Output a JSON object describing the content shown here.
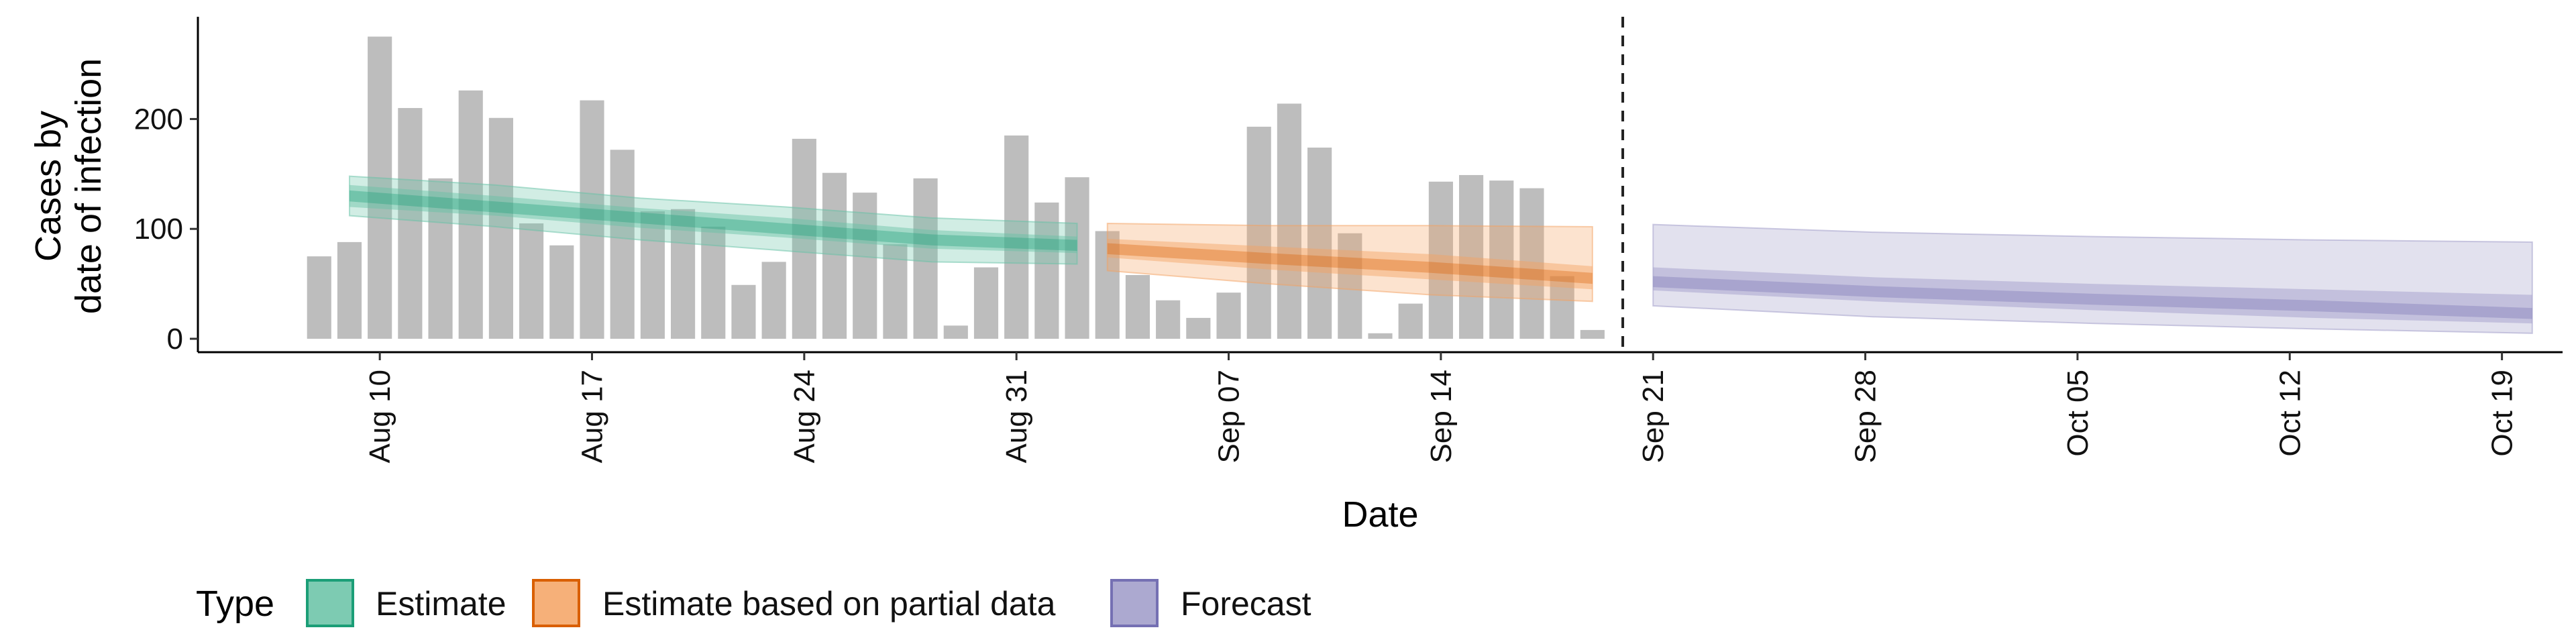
{
  "chart_data": {
    "type": "bar",
    "xlabel": "Date",
    "ylabel_lines": [
      "Cases by",
      "date of infection"
    ],
    "ylim": [
      0,
      290
    ],
    "yticks": [
      0,
      100,
      200
    ],
    "x_axis_start": "2020-08-04",
    "x_axis_end": "2020-10-21",
    "x_ticks": [
      {
        "date": "2020-08-10",
        "label": "Aug 10"
      },
      {
        "date": "2020-08-17",
        "label": "Aug 17"
      },
      {
        "date": "2020-08-24",
        "label": "Aug 24"
      },
      {
        "date": "2020-08-31",
        "label": "Aug 31"
      },
      {
        "date": "2020-09-07",
        "label": "Sep 07"
      },
      {
        "date": "2020-09-14",
        "label": "Sep 14"
      },
      {
        "date": "2020-09-21",
        "label": "Sep 21"
      },
      {
        "date": "2020-09-28",
        "label": "Sep 28"
      },
      {
        "date": "2020-10-05",
        "label": "Oct 05"
      },
      {
        "date": "2020-10-12",
        "label": "Oct 12"
      },
      {
        "date": "2020-10-19",
        "label": "Oct 19"
      }
    ],
    "forecast_start_date": "2020-09-20",
    "bars": {
      "start_date": "2020-08-08",
      "color": "#bdbdbd",
      "values": [
        75,
        88,
        275,
        210,
        146,
        226,
        201,
        105,
        85,
        217,
        172,
        116,
        118,
        102,
        49,
        70,
        182,
        151,
        133,
        86,
        146,
        12,
        65,
        185,
        124,
        147,
        98,
        58,
        35,
        19,
        42,
        193,
        214,
        174,
        96,
        5,
        32,
        143,
        149,
        144,
        137,
        57,
        8
      ]
    },
    "bands": [
      {
        "name": "Estimate",
        "color": "#1b9e77",
        "fill": "#66c2a5",
        "start_date": "2020-08-09",
        "end_date": "2020-09-02",
        "median": [
          130,
          120,
          110,
          100,
          90,
          85
        ],
        "inner": [
          [
            120,
            140
          ],
          [
            112,
            130
          ],
          [
            101,
            119
          ],
          [
            92,
            110
          ],
          [
            82,
            99
          ],
          [
            78,
            93
          ]
        ],
        "outer": [
          [
            112,
            148
          ],
          [
            102,
            140
          ],
          [
            90,
            128
          ],
          [
            80,
            120
          ],
          [
            70,
            110
          ],
          [
            68,
            105
          ]
        ]
      },
      {
        "name": "Estimate based on partial data",
        "color": "#d95f02",
        "fill": "#f4a261",
        "start_date": "2020-09-03",
        "end_date": "2020-09-19",
        "median": [
          82,
          73,
          65,
          55
        ],
        "inner": [
          [
            74,
            91
          ],
          [
            63,
            84
          ],
          [
            54,
            77
          ],
          [
            45,
            66
          ]
        ],
        "outer": [
          [
            62,
            105
          ],
          [
            50,
            103
          ],
          [
            40,
            103
          ],
          [
            34,
            102
          ]
        ]
      },
      {
        "name": "Forecast",
        "color": "#7570b3",
        "fill": "#9e9ac8",
        "start_date": "2020-09-21",
        "end_date": "2020-10-20",
        "median": [
          52,
          43,
          36,
          30,
          23
        ],
        "inner": [
          [
            44,
            65
          ],
          [
            34,
            56
          ],
          [
            26,
            50
          ],
          [
            19,
            45
          ],
          [
            14,
            40
          ]
        ],
        "outer": [
          [
            30,
            104
          ],
          [
            20,
            97
          ],
          [
            14,
            93
          ],
          [
            9,
            90
          ],
          [
            5,
            88
          ]
        ]
      }
    ],
    "legend": {
      "title": "Type",
      "position": "bottom",
      "items": [
        "Estimate",
        "Estimate based on partial data",
        "Forecast"
      ]
    }
  }
}
